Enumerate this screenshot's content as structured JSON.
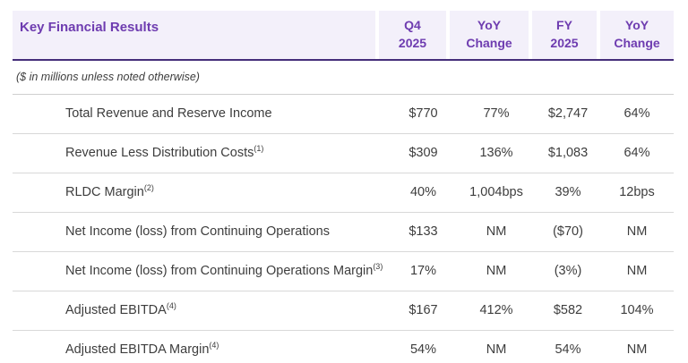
{
  "table": {
    "title": "Key Financial Results",
    "note": "($ in millions unless noted otherwise)",
    "columns": [
      {
        "label": "Q4\n2025"
      },
      {
        "label": "YoY\nChange"
      },
      {
        "label": "FY\n2025"
      },
      {
        "label": "YoY\nChange"
      }
    ],
    "rows": [
      {
        "label": "Total Revenue and Reserve Income",
        "footnote": "",
        "values": [
          "$770",
          "77%",
          "$2,747",
          "64%"
        ]
      },
      {
        "label": "Revenue Less Distribution Costs",
        "footnote": "(1)",
        "values": [
          "$309",
          "136%",
          "$1,083",
          "64%"
        ]
      },
      {
        "label": "RLDC Margin",
        "footnote": "(2)",
        "values": [
          "40%",
          "1,004bps",
          "39%",
          "12bps"
        ]
      },
      {
        "label": "Net Income (loss) from Continuing Operations",
        "footnote": "",
        "values": [
          "$133",
          "NM",
          "($70)",
          "NM"
        ]
      },
      {
        "label": "Net Income (loss) from Continuing Operations Margin",
        "footnote": "(3)",
        "values": [
          "17%",
          "NM",
          "(3%)",
          "NM"
        ]
      },
      {
        "label": "Adjusted EBITDA",
        "footnote": "(4)",
        "values": [
          "$167",
          "412%",
          "$582",
          "104%"
        ]
      },
      {
        "label": "Adjusted EBITDA Margin",
        "footnote": "(4)",
        "values": [
          "54%",
          "NM",
          "54%",
          "NM"
        ]
      }
    ],
    "colors": {
      "header_bg": "#f3f0fa",
      "header_text": "#6e3cb0",
      "header_border": "#452d7a",
      "row_border": "#d8d8d8",
      "body_text": "#3d3d3d"
    }
  }
}
